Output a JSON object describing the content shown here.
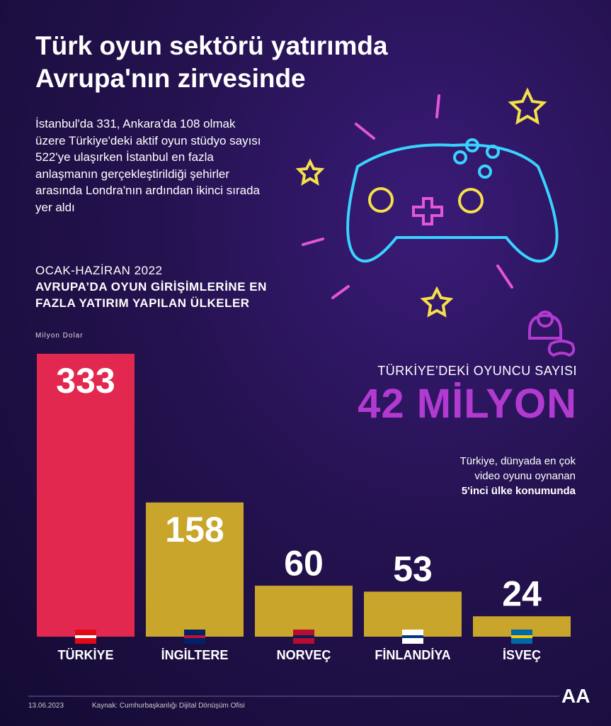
{
  "header": {
    "title": "Türk oyun sektörü yatırımda Avrupa'nın zirvesinde",
    "subtitle": "İstanbul'da 331, Ankara'da 108 olmak üzere Türkiye'deki aktif oyun stüdyo sayısı 522'ye ulaşırken İstanbul en fazla anlaşmanın gerçekleştirildiği şehirler arasında Londra'nın ardından ikinci sırada yer aldı"
  },
  "chart_data": {
    "type": "bar",
    "period": "OCAK-HAZİRAN 2022",
    "title": "AVRUPA’DA OYUN GİRİŞİMLERİNE EN FAZLA YATIRIM YAPILAN ÜLKELER",
    "unit": "Milyon Dolar",
    "categories": [
      "TÜRKİYE",
      "İNGİLTERE",
      "NORVEÇ",
      "FİNLANDİYA",
      "İSVEÇ"
    ],
    "values": [
      333,
      158,
      60,
      53,
      24
    ],
    "colors": [
      "#e3284f",
      "#c9a52b",
      "#c9a52b",
      "#c9a52b",
      "#c9a52b"
    ]
  },
  "stat": {
    "label": "TÜRKİYE’DEKİ OYUNCU SAYISI",
    "value": "42 MİLYON",
    "note": "Türkiye, dünyada en çok video oyunu oynanan",
    "note_bold": "5'inci ülke konumunda"
  },
  "footer": {
    "date": "13.06.2023",
    "source": "Kaynak: Cumhurbaşkanlığı Dijital Dönüşüm Ofisi",
    "logo": "AA"
  }
}
